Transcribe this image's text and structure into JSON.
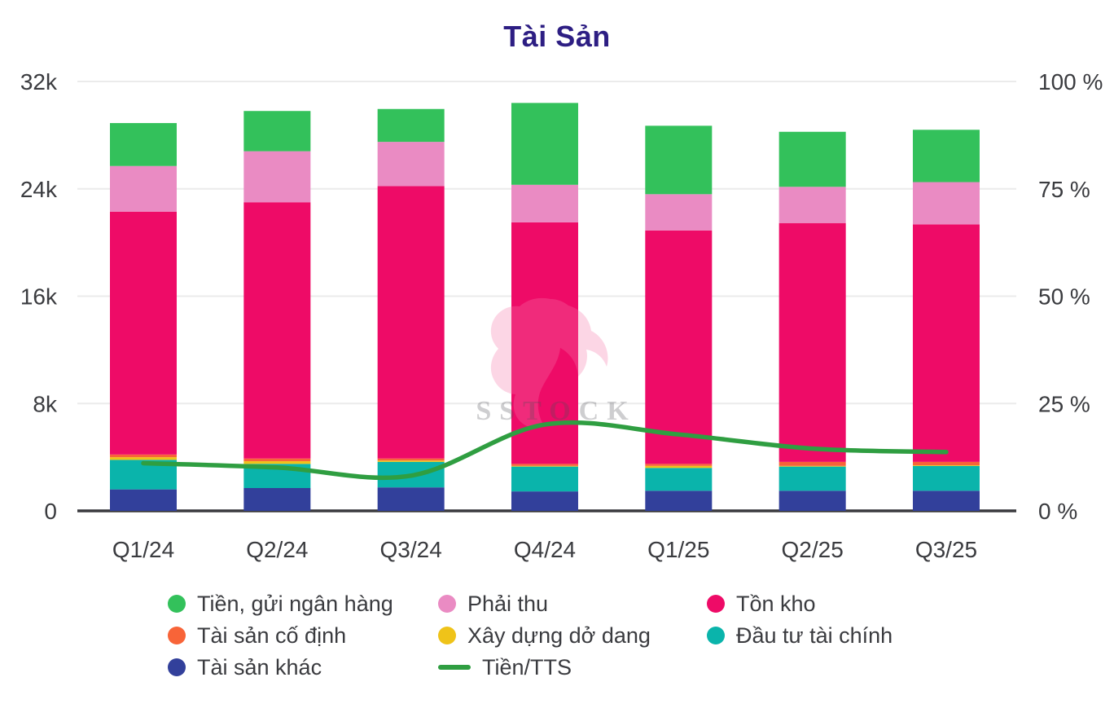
{
  "title": "Tài Sản",
  "watermark": {
    "text": "SSTOCK",
    "logo": "lion-head-logo"
  },
  "colors": {
    "title": "#2D1E83",
    "axis_text": "#3A3B3F",
    "gridline": "#EBEBEB",
    "zero_axis": "#3A3A3E",
    "background": "#FFFFFF"
  },
  "chart_data": {
    "type": "bar",
    "subtype": "stacked-bars-with-percent-line",
    "title": "Tài Sản",
    "categories": [
      "Q1/24",
      "Q2/24",
      "Q3/24",
      "Q4/24",
      "Q1/25",
      "Q2/25",
      "Q3/25"
    ],
    "left_axis": {
      "ticks": [
        "0",
        "8k",
        "16k",
        "24k",
        "32k"
      ],
      "min": 0,
      "max": 32000
    },
    "right_axis": {
      "ticks": [
        "0 %",
        "25 %",
        "50 %",
        "75 %",
        "100 %"
      ],
      "min": 0,
      "max": 100
    },
    "grid": true,
    "legend_position": "bottom",
    "series": [
      {
        "key": "tai-san-khac",
        "name": "Tài sản khác",
        "color": "#32409B",
        "values": [
          1600,
          1700,
          1750,
          1450,
          1500,
          1500,
          1500
        ]
      },
      {
        "key": "dau-tu-tai-chinh",
        "name": "Đầu tư tài chính",
        "color": "#0AB4AB",
        "values": [
          2200,
          1800,
          1900,
          1850,
          1700,
          1800,
          1850
        ]
      },
      {
        "key": "xay-dung-do-dang",
        "name": "Xây dựng dở dang",
        "color": "#EFC319",
        "values": [
          200,
          200,
          100,
          50,
          150,
          50,
          50
        ]
      },
      {
        "key": "tai-san-co-dinh",
        "name": "Tài sản cố định",
        "color": "#F86438",
        "values": [
          200,
          200,
          150,
          150,
          150,
          300,
          250
        ]
      },
      {
        "key": "ton-kho",
        "name": "Tồn kho",
        "color": "#EE0B67",
        "values": [
          18100,
          19100,
          20300,
          18000,
          17400,
          17800,
          17700
        ]
      },
      {
        "key": "phai-thu",
        "name": "Phải thu",
        "color": "#EA8BC3",
        "values": [
          3400,
          3800,
          3300,
          2800,
          2700,
          2700,
          3150
        ]
      },
      {
        "key": "tien-gui-ngan-hang",
        "name": "Tiền, gửi ngân hàng",
        "color": "#33C15B",
        "values": [
          3200,
          3000,
          2450,
          6100,
          5100,
          4100,
          3900
        ]
      }
    ],
    "line": {
      "key": "tien-tts",
      "name": "Tiền/TTS",
      "color": "#2F9E41",
      "axis": "right",
      "values_percent": [
        11.1,
        10.1,
        8.2,
        20.1,
        17.8,
        14.5,
        13.7
      ]
    }
  },
  "legend": [
    {
      "key": "tien-gui-ngan-hang",
      "label": "Tiền, gửi ngân hàng",
      "color": "#33C15B",
      "swatch": "dot"
    },
    {
      "key": "phai-thu",
      "label": "Phải thu",
      "color": "#EA8BC3",
      "swatch": "dot"
    },
    {
      "key": "ton-kho",
      "label": "Tồn kho",
      "color": "#EE0B67",
      "swatch": "dot"
    },
    {
      "key": "tai-san-co-dinh",
      "label": "Tài sản cố định",
      "color": "#F86438",
      "swatch": "dot"
    },
    {
      "key": "xay-dung-do-dang",
      "label": "Xây dựng dở dang",
      "color": "#EFC319",
      "swatch": "dot"
    },
    {
      "key": "dau-tu-tai-chinh",
      "label": "Đầu tư tài chính",
      "color": "#0AB4AB",
      "swatch": "dot"
    },
    {
      "key": "tai-san-khac",
      "label": "Tài sản khác",
      "color": "#32409B",
      "swatch": "dot"
    },
    {
      "key": "tien-tts",
      "label": "Tiền/TTS",
      "color": "#2F9E41",
      "swatch": "line"
    }
  ]
}
